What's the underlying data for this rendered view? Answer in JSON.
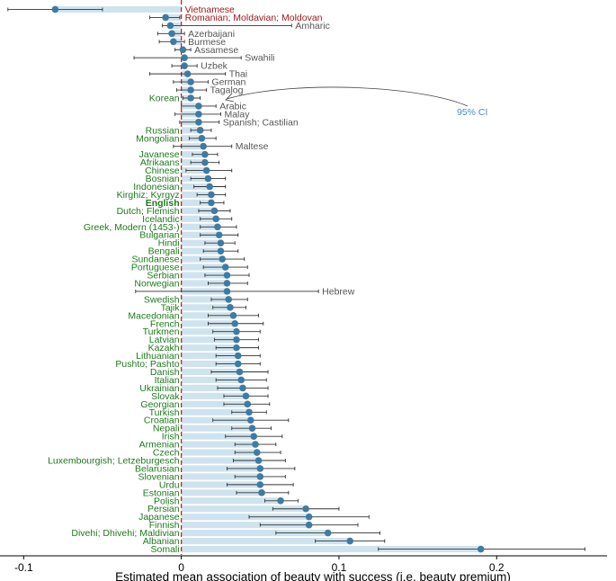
{
  "chart_data": {
    "type": "dot-whisker",
    "title": "",
    "xlabel": "Estimated mean association of beauty with success (i.e. beauty premium)",
    "ylabel": "",
    "xlim": [
      -0.115,
      0.27
    ],
    "xticks": [
      -0.1,
      0,
      0.1,
      0.2
    ],
    "xtick_labels": [
      "-0.1",
      "0",
      "0.1",
      "0.2"
    ],
    "reference_line": 0,
    "ci_annotation": "95% CI",
    "colors": {
      "point": "#3e7ba3",
      "bar": "#cfe3ef",
      "whisker": "#333333",
      "reference": "#cc2222",
      "label_green": "#1e7a1e",
      "label_red": "#a01818",
      "label_gray": "#555555",
      "annotation": "#4a8cc4"
    },
    "series": [
      {
        "language": "Vietnamese",
        "estimate": -0.08,
        "ci_low": -0.11,
        "ci_high": -0.05,
        "label_color": "red",
        "label_side": "right"
      },
      {
        "language": "Romanian; Moldavian; Moldovan",
        "estimate": -0.01,
        "ci_low": -0.02,
        "ci_high": -0.001,
        "label_color": "red",
        "label_side": "right"
      },
      {
        "language": "Amharic",
        "estimate": -0.007,
        "ci_low": -0.012,
        "ci_high": 0.07,
        "label_color": "gray",
        "label_side": "right"
      },
      {
        "language": "Azerbaijani",
        "estimate": -0.006,
        "ci_low": -0.015,
        "ci_high": 0.002,
        "label_color": "gray",
        "label_side": "right"
      },
      {
        "language": "Burmese",
        "estimate": -0.005,
        "ci_low": -0.014,
        "ci_high": 0.002,
        "label_color": "gray",
        "label_side": "right"
      },
      {
        "language": "Assamese",
        "estimate": 0.001,
        "ci_low": -0.004,
        "ci_high": 0.006,
        "label_color": "gray",
        "label_side": "right"
      },
      {
        "language": "Swahili",
        "estimate": 0.002,
        "ci_low": -0.03,
        "ci_high": 0.038,
        "label_color": "gray",
        "label_side": "right"
      },
      {
        "language": "Uzbek",
        "estimate": 0.002,
        "ci_low": -0.006,
        "ci_high": 0.01,
        "label_color": "gray",
        "label_side": "right"
      },
      {
        "language": "Thai",
        "estimate": 0.004,
        "ci_low": -0.02,
        "ci_high": 0.028,
        "label_color": "gray",
        "label_side": "right"
      },
      {
        "language": "German",
        "estimate": 0.006,
        "ci_low": -0.005,
        "ci_high": 0.017,
        "label_color": "gray",
        "label_side": "right"
      },
      {
        "language": "Tagalog",
        "estimate": 0.006,
        "ci_low": -0.003,
        "ci_high": 0.016,
        "label_color": "gray",
        "label_side": "right"
      },
      {
        "language": "Korean",
        "estimate": 0.006,
        "ci_low": 0.001,
        "ci_high": 0.012,
        "label_color": "green",
        "label_side": "left"
      },
      {
        "language": "Arabic",
        "estimate": 0.011,
        "ci_low": 0.0,
        "ci_high": 0.022,
        "label_color": "gray",
        "label_side": "right"
      },
      {
        "language": "Malay",
        "estimate": 0.011,
        "ci_low": -0.004,
        "ci_high": 0.025,
        "label_color": "gray",
        "label_side": "right"
      },
      {
        "language": "Spanish; Castilian",
        "estimate": 0.011,
        "ci_low": -0.001,
        "ci_high": 0.024,
        "label_color": "gray",
        "label_side": "right"
      },
      {
        "language": "Russian",
        "estimate": 0.012,
        "ci_low": 0.006,
        "ci_high": 0.019,
        "label_color": "green",
        "label_side": "left"
      },
      {
        "language": "Mongolian",
        "estimate": 0.013,
        "ci_low": 0.005,
        "ci_high": 0.022,
        "label_color": "green",
        "label_side": "left"
      },
      {
        "language": "Maltese",
        "estimate": 0.014,
        "ci_low": -0.005,
        "ci_high": 0.032,
        "label_color": "gray",
        "label_side": "right"
      },
      {
        "language": "Javanese",
        "estimate": 0.015,
        "ci_low": 0.007,
        "ci_high": 0.023,
        "label_color": "green",
        "label_side": "left"
      },
      {
        "language": "Afrikaans",
        "estimate": 0.015,
        "ci_low": 0.006,
        "ci_high": 0.024,
        "label_color": "green",
        "label_side": "left"
      },
      {
        "language": "Chinese",
        "estimate": 0.016,
        "ci_low": 0.003,
        "ci_high": 0.032,
        "label_color": "green",
        "label_side": "left"
      },
      {
        "language": "Bosnian",
        "estimate": 0.017,
        "ci_low": 0.006,
        "ci_high": 0.028,
        "label_color": "green",
        "label_side": "left"
      },
      {
        "language": "Indonesian",
        "estimate": 0.018,
        "ci_low": 0.008,
        "ci_high": 0.028,
        "label_color": "green",
        "label_side": "left"
      },
      {
        "language": "Kirghiz; Kyrgyz",
        "estimate": 0.019,
        "ci_low": 0.01,
        "ci_high": 0.028,
        "label_color": "green",
        "label_side": "left"
      },
      {
        "language": "English",
        "estimate": 0.019,
        "ci_low": 0.012,
        "ci_high": 0.027,
        "label_color": "green",
        "label_side": "left",
        "bold": true
      },
      {
        "language": "Dutch; Flemish",
        "estimate": 0.021,
        "ci_low": 0.011,
        "ci_high": 0.031,
        "label_color": "green",
        "label_side": "left"
      },
      {
        "language": "Icelandic",
        "estimate": 0.022,
        "ci_low": 0.012,
        "ci_high": 0.032,
        "label_color": "green",
        "label_side": "left"
      },
      {
        "language": "Greek, Modern (1453-)",
        "estimate": 0.023,
        "ci_low": 0.012,
        "ci_high": 0.035,
        "label_color": "green",
        "label_side": "left"
      },
      {
        "language": "Bulgarian",
        "estimate": 0.024,
        "ci_low": 0.012,
        "ci_high": 0.036,
        "label_color": "green",
        "label_side": "left"
      },
      {
        "language": "Hindi",
        "estimate": 0.025,
        "ci_low": 0.015,
        "ci_high": 0.034,
        "label_color": "green",
        "label_side": "left"
      },
      {
        "language": "Bengali",
        "estimate": 0.025,
        "ci_low": 0.014,
        "ci_high": 0.036,
        "label_color": "green",
        "label_side": "left"
      },
      {
        "language": "Sundanese",
        "estimate": 0.026,
        "ci_low": 0.012,
        "ci_high": 0.04,
        "label_color": "green",
        "label_side": "left"
      },
      {
        "language": "Portuguese",
        "estimate": 0.028,
        "ci_low": 0.014,
        "ci_high": 0.042,
        "label_color": "green",
        "label_side": "left"
      },
      {
        "language": "Serbian",
        "estimate": 0.029,
        "ci_low": 0.015,
        "ci_high": 0.043,
        "label_color": "green",
        "label_side": "left"
      },
      {
        "language": "Norwegian",
        "estimate": 0.029,
        "ci_low": 0.017,
        "ci_high": 0.042,
        "label_color": "green",
        "label_side": "left"
      },
      {
        "language": "Hebrew",
        "estimate": 0.029,
        "ci_low": -0.029,
        "ci_high": 0.087,
        "label_color": "gray",
        "label_side": "right"
      },
      {
        "language": "Swedish",
        "estimate": 0.03,
        "ci_low": 0.019,
        "ci_high": 0.042,
        "label_color": "green",
        "label_side": "left"
      },
      {
        "language": "Tajik",
        "estimate": 0.031,
        "ci_low": 0.02,
        "ci_high": 0.041,
        "label_color": "green",
        "label_side": "left"
      },
      {
        "language": "Macedonian",
        "estimate": 0.033,
        "ci_low": 0.017,
        "ci_high": 0.049,
        "label_color": "green",
        "label_side": "left"
      },
      {
        "language": "French",
        "estimate": 0.034,
        "ci_low": 0.017,
        "ci_high": 0.052,
        "label_color": "green",
        "label_side": "left"
      },
      {
        "language": "Turkmen",
        "estimate": 0.035,
        "ci_low": 0.02,
        "ci_high": 0.05,
        "label_color": "green",
        "label_side": "left"
      },
      {
        "language": "Latvian",
        "estimate": 0.035,
        "ci_low": 0.021,
        "ci_high": 0.049,
        "label_color": "green",
        "label_side": "left"
      },
      {
        "language": "Kazakh",
        "estimate": 0.035,
        "ci_low": 0.022,
        "ci_high": 0.049,
        "label_color": "green",
        "label_side": "left"
      },
      {
        "language": "Lithuanian",
        "estimate": 0.036,
        "ci_low": 0.022,
        "ci_high": 0.05,
        "label_color": "green",
        "label_side": "left"
      },
      {
        "language": "Pushto; Pashto",
        "estimate": 0.036,
        "ci_low": 0.022,
        "ci_high": 0.05,
        "label_color": "green",
        "label_side": "left"
      },
      {
        "language": "Danish",
        "estimate": 0.037,
        "ci_low": 0.019,
        "ci_high": 0.055,
        "label_color": "green",
        "label_side": "left"
      },
      {
        "language": "Italian",
        "estimate": 0.038,
        "ci_low": 0.022,
        "ci_high": 0.054,
        "label_color": "green",
        "label_side": "left"
      },
      {
        "language": "Ukrainian",
        "estimate": 0.039,
        "ci_low": 0.023,
        "ci_high": 0.055,
        "label_color": "green",
        "label_side": "left"
      },
      {
        "language": "Slovak",
        "estimate": 0.041,
        "ci_low": 0.027,
        "ci_high": 0.055,
        "label_color": "green",
        "label_side": "left"
      },
      {
        "language": "Georgian",
        "estimate": 0.042,
        "ci_low": 0.027,
        "ci_high": 0.056,
        "label_color": "green",
        "label_side": "left"
      },
      {
        "language": "Turkish",
        "estimate": 0.043,
        "ci_low": 0.032,
        "ci_high": 0.054,
        "label_color": "green",
        "label_side": "left"
      },
      {
        "language": "Croatian",
        "estimate": 0.044,
        "ci_low": 0.02,
        "ci_high": 0.068,
        "label_color": "green",
        "label_side": "left"
      },
      {
        "language": "Nepali",
        "estimate": 0.045,
        "ci_low": 0.032,
        "ci_high": 0.057,
        "label_color": "green",
        "label_side": "left"
      },
      {
        "language": "Irish",
        "estimate": 0.046,
        "ci_low": 0.028,
        "ci_high": 0.064,
        "label_color": "green",
        "label_side": "left"
      },
      {
        "language": "Armenian",
        "estimate": 0.047,
        "ci_low": 0.034,
        "ci_high": 0.06,
        "label_color": "green",
        "label_side": "left"
      },
      {
        "language": "Czech",
        "estimate": 0.048,
        "ci_low": 0.034,
        "ci_high": 0.063,
        "label_color": "green",
        "label_side": "left"
      },
      {
        "language": "Luxembourgish; Letzeburgesch",
        "estimate": 0.049,
        "ci_low": 0.033,
        "ci_high": 0.066,
        "label_color": "green",
        "label_side": "left"
      },
      {
        "language": "Belarusian",
        "estimate": 0.05,
        "ci_low": 0.029,
        "ci_high": 0.072,
        "label_color": "green",
        "label_side": "left"
      },
      {
        "language": "Slovenian",
        "estimate": 0.05,
        "ci_low": 0.034,
        "ci_high": 0.066,
        "label_color": "green",
        "label_side": "left"
      },
      {
        "language": "Urdu",
        "estimate": 0.05,
        "ci_low": 0.029,
        "ci_high": 0.071,
        "label_color": "green",
        "label_side": "left"
      },
      {
        "language": "Estonian",
        "estimate": 0.051,
        "ci_low": 0.035,
        "ci_high": 0.068,
        "label_color": "green",
        "label_side": "left"
      },
      {
        "language": "Polish",
        "estimate": 0.063,
        "ci_low": 0.053,
        "ci_high": 0.074,
        "label_color": "green",
        "label_side": "left"
      },
      {
        "language": "Persian",
        "estimate": 0.079,
        "ci_low": 0.058,
        "ci_high": 0.1,
        "label_color": "green",
        "label_side": "left"
      },
      {
        "language": "Japanese",
        "estimate": 0.081,
        "ci_low": 0.043,
        "ci_high": 0.119,
        "label_color": "green",
        "label_side": "left"
      },
      {
        "language": "Finnish",
        "estimate": 0.081,
        "ci_low": 0.05,
        "ci_high": 0.112,
        "label_color": "green",
        "label_side": "left"
      },
      {
        "language": "Divehi; Dhivehi; Maldivian",
        "estimate": 0.093,
        "ci_low": 0.06,
        "ci_high": 0.126,
        "label_color": "green",
        "label_side": "left"
      },
      {
        "language": "Albanian",
        "estimate": 0.107,
        "ci_low": 0.085,
        "ci_high": 0.129,
        "label_color": "green",
        "label_side": "left"
      },
      {
        "language": "Somali",
        "estimate": 0.19,
        "ci_low": 0.125,
        "ci_high": 0.256,
        "label_color": "green",
        "label_side": "left"
      }
    ]
  }
}
